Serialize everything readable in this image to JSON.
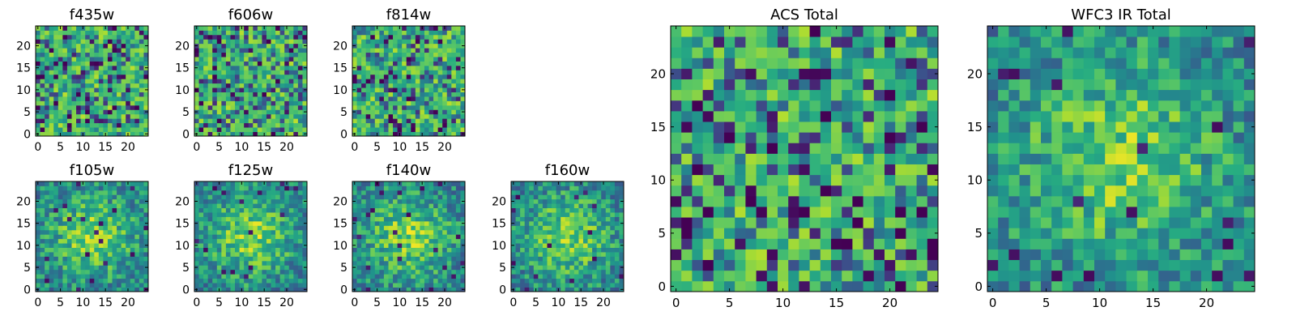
{
  "chart_data": [
    {
      "type": "heatmap",
      "title": "f435w",
      "x_ticks": [
        0,
        5,
        10,
        15,
        20
      ],
      "y_ticks": [
        0,
        5,
        10,
        15,
        20
      ],
      "xlim": [
        -0.5,
        24.5
      ],
      "ylim": [
        -0.5,
        24.5
      ],
      "grid_size": [
        25,
        25
      ],
      "colormap": "viridis",
      "pattern": "noise",
      "seed": 11
    },
    {
      "type": "heatmap",
      "title": "f606w",
      "x_ticks": [
        0,
        5,
        10,
        15,
        20
      ],
      "y_ticks": [
        0,
        5,
        10,
        15,
        20
      ],
      "xlim": [
        -0.5,
        24.5
      ],
      "ylim": [
        -0.5,
        24.5
      ],
      "grid_size": [
        25,
        25
      ],
      "colormap": "viridis",
      "pattern": "noise",
      "seed": 23
    },
    {
      "type": "heatmap",
      "title": "f814w",
      "x_ticks": [
        0,
        5,
        10,
        15,
        20
      ],
      "y_ticks": [
        0,
        5,
        10,
        15,
        20
      ],
      "xlim": [
        -0.5,
        24.5
      ],
      "ylim": [
        -0.5,
        24.5
      ],
      "grid_size": [
        25,
        25
      ],
      "colormap": "viridis",
      "pattern": "noise",
      "seed": 37
    },
    {
      "type": "heatmap",
      "title": "f105w",
      "x_ticks": [
        0,
        5,
        10,
        15,
        20
      ],
      "y_ticks": [
        0,
        5,
        10,
        15,
        20
      ],
      "xlim": [
        -0.5,
        24.5
      ],
      "ylim": [
        -0.5,
        24.5
      ],
      "grid_size": [
        25,
        25
      ],
      "colormap": "viridis",
      "pattern": "blob",
      "seed": 41
    },
    {
      "type": "heatmap",
      "title": "f125w",
      "x_ticks": [
        0,
        5,
        10,
        15,
        20
      ],
      "y_ticks": [
        0,
        5,
        10,
        15,
        20
      ],
      "xlim": [
        -0.5,
        24.5
      ],
      "ylim": [
        -0.5,
        24.5
      ],
      "grid_size": [
        25,
        25
      ],
      "colormap": "viridis",
      "pattern": "blob",
      "seed": 53
    },
    {
      "type": "heatmap",
      "title": "f140w",
      "x_ticks": [
        0,
        5,
        10,
        15,
        20
      ],
      "y_ticks": [
        0,
        5,
        10,
        15,
        20
      ],
      "xlim": [
        -0.5,
        24.5
      ],
      "ylim": [
        -0.5,
        24.5
      ],
      "grid_size": [
        25,
        25
      ],
      "colormap": "viridis",
      "pattern": "blob",
      "seed": 67
    },
    {
      "type": "heatmap",
      "title": "f160w",
      "x_ticks": [
        0,
        5,
        10,
        15,
        20
      ],
      "y_ticks": [
        0,
        5,
        10,
        15,
        20
      ],
      "xlim": [
        -0.5,
        24.5
      ],
      "ylim": [
        -0.5,
        24.5
      ],
      "grid_size": [
        25,
        25
      ],
      "colormap": "viridis",
      "pattern": "blob",
      "seed": 79
    },
    {
      "type": "heatmap",
      "title": "ACS Total",
      "x_ticks": [
        0,
        5,
        10,
        15,
        20
      ],
      "y_ticks": [
        0,
        5,
        10,
        15,
        20
      ],
      "xlim": [
        -0.5,
        24.5
      ],
      "ylim": [
        -0.5,
        24.5
      ],
      "grid_size": [
        25,
        25
      ],
      "colormap": "viridis",
      "pattern": "noise",
      "seed": 97
    },
    {
      "type": "heatmap",
      "title": "WFC3 IR Total",
      "x_ticks": [
        0,
        5,
        10,
        15,
        20
      ],
      "y_ticks": [
        0,
        5,
        10,
        15,
        20
      ],
      "xlim": [
        -0.5,
        24.5
      ],
      "ylim": [
        -0.5,
        24.5
      ],
      "grid_size": [
        25,
        25
      ],
      "colormap": "viridis",
      "pattern": "blob",
      "seed": 113
    }
  ]
}
